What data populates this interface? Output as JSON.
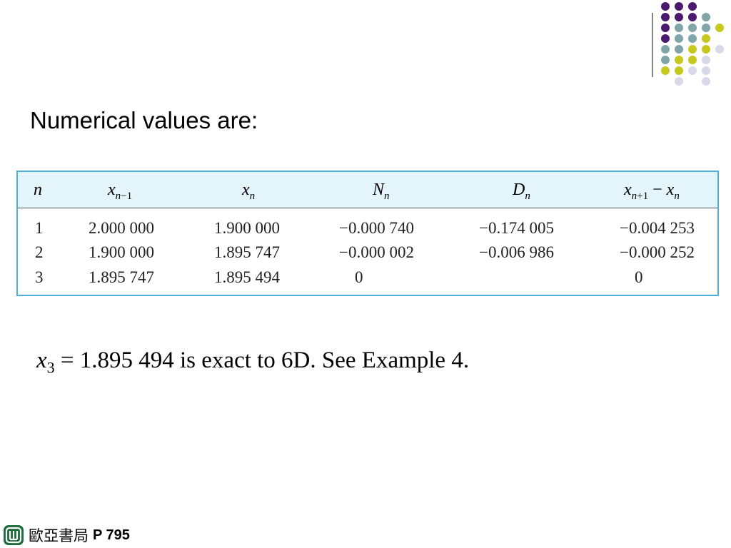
{
  "heading": "Numerical values are:",
  "table": {
    "headers": {
      "n": "n",
      "x_prev_base": "x",
      "x_prev_sub_n": "n",
      "x_prev_sub_rest": "−1",
      "x_base": "x",
      "x_sub": "n",
      "N_base": "N",
      "N_sub": "n",
      "D_base": "D",
      "D_sub": "n",
      "diff_base1": "x",
      "diff_sub1_n": "n",
      "diff_sub1_rest": "+1",
      "diff_op": " − ",
      "diff_base2": "x",
      "diff_sub2": "n"
    },
    "rows": [
      {
        "n": "1",
        "x_prev": "2.000 000",
        "x": "1.900 000",
        "N": "−0.000 740",
        "D": "−0.174 005",
        "diff": "−0.004 253"
      },
      {
        "n": "2",
        "x_prev": "1.900 000",
        "x": "1.895 747",
        "N": "−0.000 002",
        "D": "−0.006 986",
        "diff": "−0.000 252"
      },
      {
        "n": "3",
        "x_prev": "1.895 747",
        "x": "1.895 494",
        "N": "0",
        "D": "",
        "diff": "0"
      }
    ]
  },
  "statement": {
    "var": "x",
    "sub": "3",
    "text": " = 1.895 494 is exact to 6D. See Example 4."
  },
  "footer": {
    "publisher": "歐亞書局",
    "page": "P 795"
  },
  "colors": {
    "purple": "#4b1a6e",
    "teal": "#7fa5a8",
    "yellow": "#c7c81d",
    "lavender": "#d8d8e8",
    "table_border": "#4fb0dc",
    "table_header_bg": "#e3f4fb"
  }
}
